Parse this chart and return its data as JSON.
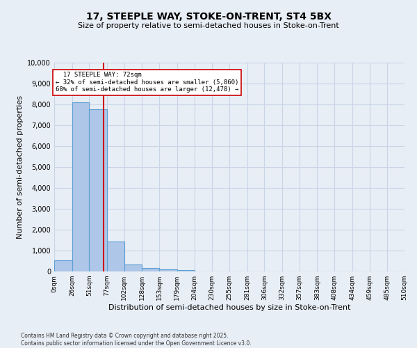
{
  "title": "17, STEEPLE WAY, STOKE-ON-TRENT, ST4 5BX",
  "subtitle": "Size of property relative to semi-detached houses in Stoke-on-Trent",
  "xlabel": "Distribution of semi-detached houses by size in Stoke-on-Trent",
  "ylabel": "Number of semi-detached properties",
  "bar_edges": [
    0,
    26,
    51,
    77,
    102,
    128,
    153,
    179,
    204,
    230,
    255,
    281,
    306,
    332,
    357,
    383,
    408,
    434,
    459,
    485,
    510
  ],
  "bar_heights": [
    550,
    8100,
    7750,
    1450,
    320,
    160,
    100,
    60,
    0,
    0,
    0,
    0,
    0,
    0,
    0,
    0,
    0,
    0,
    0,
    0
  ],
  "bar_color": "#aec6e8",
  "bar_edge_color": "#5a9fd4",
  "subject_value": 72,
  "subject_label": "17 STEEPLE WAY: 72sqm",
  "pct_smaller": 32,
  "pct_larger": 68,
  "count_smaller": 5860,
  "count_larger": 12478,
  "vline_color": "#cc0000",
  "annotation_box_color": "#cc0000",
  "ylim_max": 10000,
  "yticks": [
    0,
    1000,
    2000,
    3000,
    4000,
    5000,
    6000,
    7000,
    8000,
    9000,
    10000
  ],
  "tick_labels": [
    "0sqm",
    "26sqm",
    "51sqm",
    "77sqm",
    "102sqm",
    "128sqm",
    "153sqm",
    "179sqm",
    "204sqm",
    "230sqm",
    "255sqm",
    "281sqm",
    "306sqm",
    "332sqm",
    "357sqm",
    "383sqm",
    "408sqm",
    "434sqm",
    "459sqm",
    "485sqm",
    "510sqm"
  ],
  "grid_color": "#c8d4e8",
  "bg_color": "#e8eef5",
  "footnote1": "Contains HM Land Registry data © Crown copyright and database right 2025.",
  "footnote2": "Contains public sector information licensed under the Open Government Licence v3.0."
}
